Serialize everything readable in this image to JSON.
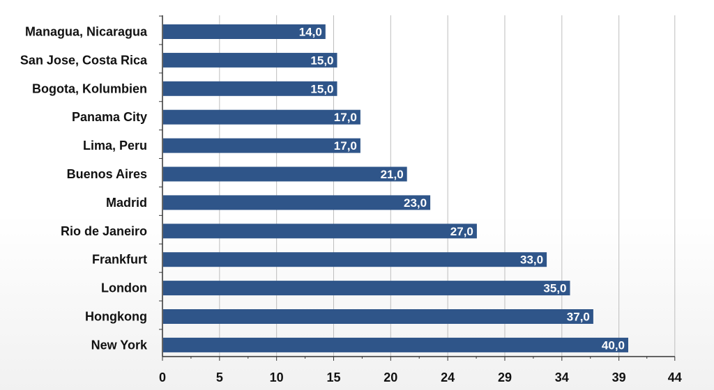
{
  "chart_data": {
    "type": "bar",
    "orientation": "horizontal",
    "title": "",
    "xlabel": "",
    "ylabel": "",
    "categories": [
      "Managua, Nicaragua",
      "San Jose, Costa Rica",
      "Bogota, Kolumbien",
      "Panama City",
      "Lima, Peru",
      "Buenos Aires",
      "Madrid",
      "Rio de Janeiro",
      "Frankfurt",
      "London",
      "Hongkong",
      "New York"
    ],
    "values": [
      14.0,
      15.0,
      15.0,
      17.0,
      17.0,
      21.0,
      23.0,
      27.0,
      33.0,
      35.0,
      37.0,
      40.0
    ],
    "data_labels": [
      "14,0",
      "15,0",
      "15,0",
      "17,0",
      "17,0",
      "21,0",
      "23,0",
      "27,0",
      "33,0",
      "35,0",
      "37,0",
      "40,0"
    ],
    "xlim": [
      0,
      44
    ],
    "x_ticks": [
      0,
      4.9,
      9.8,
      14.7,
      19.6,
      24.5,
      29.4,
      34.3,
      39.2,
      44
    ],
    "x_tick_labels": [
      "0",
      "5",
      "10",
      "15",
      "20",
      "24",
      "29",
      "34",
      "39",
      "44"
    ],
    "grid": "vertical",
    "legend": "none",
    "colors": {
      "bar": "#2f5589",
      "grid": "#bdbdbd",
      "axis": "#333333",
      "label": "#ffffff"
    }
  }
}
